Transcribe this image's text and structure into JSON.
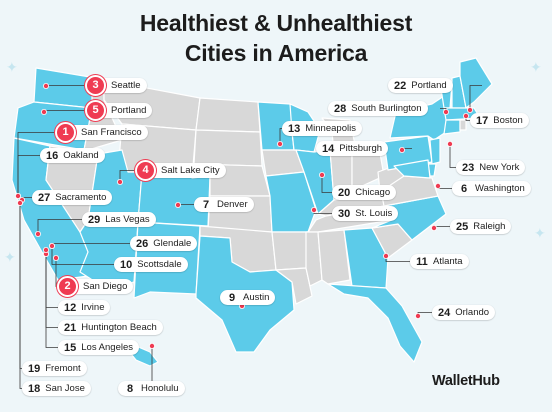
{
  "title": {
    "line1": "Healthiest & Unhealthiest",
    "line2": "Cities in America"
  },
  "brand": "WalletHub",
  "colors": {
    "highlighted_state": "#5ccbe9",
    "other_state": "#d8d8d8",
    "state_border": "#ffffff",
    "marker": "#ef3b52",
    "leader_line": "#3a3a3a"
  },
  "highlighted_states": [
    "WA",
    "OR",
    "CA",
    "AZ",
    "NM",
    "TX",
    "CO",
    "UT",
    "MN",
    "WI",
    "IL",
    "MO",
    "NY",
    "VT",
    "NH",
    "ME",
    "MA",
    "CT",
    "NJ",
    "DE",
    "MD",
    "PA",
    "GA",
    "FL",
    "NC",
    "HI"
  ],
  "cities": [
    {
      "rank": "3",
      "name": "Seattle",
      "tier": "healthy"
    },
    {
      "rank": "5",
      "name": "Portland",
      "tier": "healthy"
    },
    {
      "rank": "1",
      "name": "San Francisco",
      "tier": "healthy"
    },
    {
      "rank": "16",
      "name": "Oakland",
      "tier": "other"
    },
    {
      "rank": "4",
      "name": "Salt Lake City",
      "tier": "healthy"
    },
    {
      "rank": "27",
      "name": "Sacramento",
      "tier": "other"
    },
    {
      "rank": "7",
      "name": "Denver",
      "tier": "other"
    },
    {
      "rank": "29",
      "name": "Las Vegas",
      "tier": "other"
    },
    {
      "rank": "26",
      "name": "Glendale",
      "tier": "other"
    },
    {
      "rank": "10",
      "name": "Scottsdale",
      "tier": "other"
    },
    {
      "rank": "2",
      "name": "San Diego",
      "tier": "healthy"
    },
    {
      "rank": "12",
      "name": "Irvine",
      "tier": "other"
    },
    {
      "rank": "21",
      "name": "Huntington Beach",
      "tier": "other"
    },
    {
      "rank": "15",
      "name": "Los Angeles",
      "tier": "other"
    },
    {
      "rank": "19",
      "name": "Fremont",
      "tier": "other"
    },
    {
      "rank": "18",
      "name": "San Jose",
      "tier": "other"
    },
    {
      "rank": "8",
      "name": "Honolulu",
      "tier": "other"
    },
    {
      "rank": "9",
      "name": "Austin",
      "tier": "other"
    },
    {
      "rank": "22",
      "name": "Portland",
      "tier": "other"
    },
    {
      "rank": "28",
      "name": "South Burlington",
      "tier": "other"
    },
    {
      "rank": "17",
      "name": "Boston",
      "tier": "other"
    },
    {
      "rank": "13",
      "name": "Minneapolis",
      "tier": "other"
    },
    {
      "rank": "14",
      "name": "Pittsburgh",
      "tier": "other"
    },
    {
      "rank": "23",
      "name": "New York",
      "tier": "other"
    },
    {
      "rank": "6",
      "name": "Washington",
      "tier": "other"
    },
    {
      "rank": "20",
      "name": "Chicago",
      "tier": "other"
    },
    {
      "rank": "30",
      "name": "St. Louis",
      "tier": "other"
    },
    {
      "rank": "25",
      "name": "Raleigh",
      "tier": "other"
    },
    {
      "rank": "11",
      "name": "Atlanta",
      "tier": "other"
    },
    {
      "rank": "24",
      "name": "Orlando",
      "tier": "other"
    }
  ]
}
